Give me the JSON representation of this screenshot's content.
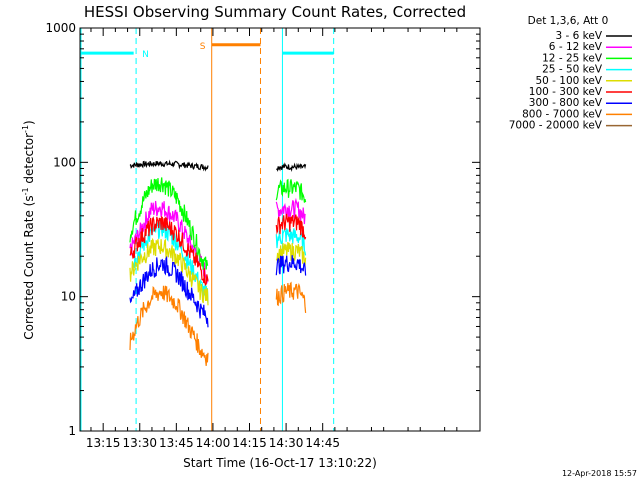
{
  "chart_data": {
    "type": "line",
    "title": "HESSI Observing Summary Count Rates, Corrected",
    "xlabel": "Start Time (16-Oct-17 13:10:22)",
    "ylabel_main": "Corrected Count Rate (s",
    "ylabel_sup1": "-1",
    "ylabel_mid": " detector",
    "ylabel_sup2": "-1",
    "ylabel_end": ")",
    "timestamp": "12-Apr-2018 15:57",
    "x_unit": "minutes after 13:00 UT",
    "xlim": [
      5.5,
      169.5
    ],
    "ylim": [
      1,
      1000
    ],
    "y_scale": "log",
    "x_ticks": [
      {
        "value": 15,
        "label": "13:15"
      },
      {
        "value": 30,
        "label": "13:30"
      },
      {
        "value": 45,
        "label": "13:45"
      },
      {
        "value": 60,
        "label": "14:00"
      },
      {
        "value": 75,
        "label": "14:15"
      },
      {
        "value": 90,
        "label": "14:30"
      },
      {
        "value": 105,
        "label": "14:45"
      }
    ],
    "y_ticks": [
      {
        "value": 1,
        "label": "1"
      },
      {
        "value": 10,
        "label": "10"
      },
      {
        "value": 100,
        "label": "100"
      },
      {
        "value": 1000,
        "label": "1000"
      }
    ],
    "legend_title": "Det 1,3,6, Att 0",
    "series": [
      {
        "name": "3 - 6 keV",
        "color": "#000000",
        "seg1": [
          [
            26,
            95
          ],
          [
            32,
            97
          ],
          [
            38,
            98
          ],
          [
            45,
            97
          ],
          [
            52,
            94
          ],
          [
            58,
            92
          ]
        ],
        "seg2": [
          [
            86,
            92
          ],
          [
            90,
            93
          ],
          [
            95,
            92
          ],
          [
            98,
            92
          ]
        ]
      },
      {
        "name": "6 - 12 keV",
        "color": "#ff00ff",
        "seg1": [
          [
            26,
            22
          ],
          [
            30,
            30
          ],
          [
            35,
            45
          ],
          [
            39,
            47
          ],
          [
            45,
            38
          ],
          [
            50,
            26
          ],
          [
            55,
            18
          ],
          [
            58,
            14
          ]
        ],
        "seg2": [
          [
            86,
            44
          ],
          [
            90,
            46
          ],
          [
            95,
            45
          ],
          [
            98,
            38
          ]
        ]
      },
      {
        "name": "12 - 25 keV",
        "color": "#00ff00",
        "seg1": [
          [
            26,
            30
          ],
          [
            30,
            45
          ],
          [
            35,
            68
          ],
          [
            39,
            72
          ],
          [
            45,
            55
          ],
          [
            50,
            35
          ],
          [
            55,
            20
          ],
          [
            58,
            16
          ]
        ],
        "seg2": [
          [
            86,
            62
          ],
          [
            90,
            65
          ],
          [
            95,
            64
          ],
          [
            98,
            55
          ]
        ]
      },
      {
        "name": "25 - 50 keV",
        "color": "#00ffff",
        "seg1": [
          [
            26,
            16
          ],
          [
            30,
            22
          ],
          [
            35,
            30
          ],
          [
            39,
            33
          ],
          [
            45,
            26
          ],
          [
            50,
            18
          ],
          [
            55,
            12
          ],
          [
            58,
            10
          ]
        ],
        "seg2": [
          [
            86,
            27
          ],
          [
            90,
            29
          ],
          [
            95,
            28
          ],
          [
            98,
            24
          ]
        ]
      },
      {
        "name": "50 - 100 keV",
        "color": "#dddd00",
        "seg1": [
          [
            26,
            15
          ],
          [
            30,
            19
          ],
          [
            35,
            23
          ],
          [
            39,
            24
          ],
          [
            45,
            20
          ],
          [
            50,
            15
          ],
          [
            55,
            11
          ],
          [
            58,
            10
          ]
        ],
        "seg2": [
          [
            86,
            21
          ],
          [
            90,
            22
          ],
          [
            95,
            22
          ],
          [
            98,
            19
          ]
        ]
      },
      {
        "name": "100 - 300 keV",
        "color": "#ff0000",
        "seg1": [
          [
            26,
            20
          ],
          [
            30,
            27
          ],
          [
            35,
            34
          ],
          [
            39,
            36
          ],
          [
            45,
            30
          ],
          [
            50,
            22
          ],
          [
            55,
            16
          ],
          [
            58,
            13
          ]
        ],
        "seg2": [
          [
            86,
            34
          ],
          [
            90,
            36
          ],
          [
            95,
            36
          ],
          [
            98,
            30
          ]
        ]
      },
      {
        "name": "300 - 800 keV",
        "color": "#0000ff",
        "seg1": [
          [
            26,
            8.5
          ],
          [
            30,
            12
          ],
          [
            35,
            16
          ],
          [
            39,
            18
          ],
          [
            45,
            15
          ],
          [
            50,
            11
          ],
          [
            55,
            8
          ],
          [
            58,
            7
          ]
        ],
        "seg2": [
          [
            86,
            17
          ],
          [
            90,
            18
          ],
          [
            95,
            18
          ],
          [
            98,
            15
          ]
        ]
      },
      {
        "name": "800 - 7000 keV",
        "color": "#ff8000",
        "seg1": [
          [
            26,
            4.5
          ],
          [
            30,
            7
          ],
          [
            35,
            10
          ],
          [
            39,
            11
          ],
          [
            45,
            9
          ],
          [
            50,
            6
          ],
          [
            55,
            4
          ],
          [
            58,
            3.5
          ]
        ],
        "seg2": [
          [
            86,
            10
          ],
          [
            90,
            11
          ],
          [
            95,
            11
          ],
          [
            98,
            9
          ]
        ]
      },
      {
        "name": "7000 - 20000 keV",
        "color": "#996633",
        "seg1": [],
        "seg2": []
      }
    ],
    "markers": [
      {
        "label": "N",
        "color": "#00ffff",
        "bar_start": 5.5,
        "bar_end": 27.5,
        "bar_y": 650,
        "line_x": 28.5,
        "line_style": "dashed",
        "extra_line_x": null
      },
      {
        "label": "S",
        "color": "#ff8000",
        "bar_start": 59.5,
        "bar_end": 79.5,
        "bar_y": 750,
        "line_x": 79.5,
        "line_style": "dashed",
        "extra_line_x": 59.5
      },
      {
        "label": "",
        "color": "#00ffff",
        "bar_start": 88.5,
        "bar_end": 109.5,
        "bar_y": 650,
        "line_x": 109.5,
        "line_style": "dashed",
        "extra_line_x": 88.5
      }
    ],
    "grid": false,
    "legend_position": "top-right, outside plot"
  }
}
